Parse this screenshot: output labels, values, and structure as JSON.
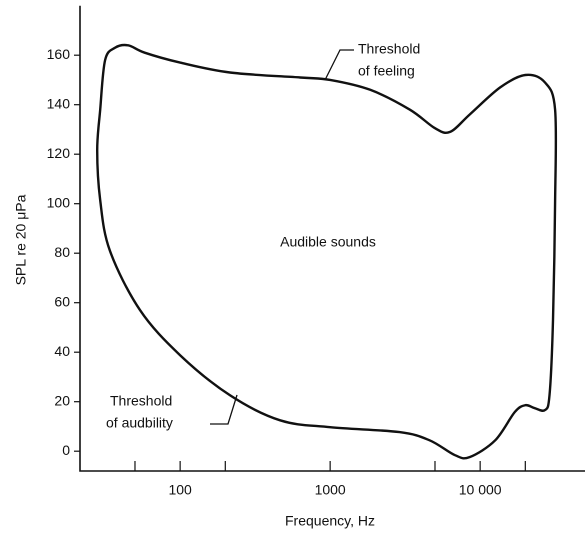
{
  "chart_data": {
    "type": "line",
    "xlabel": "Frequency, Hz",
    "ylabel": "SPL re 20 μPa",
    "xscale": "log",
    "xlim": [
      21.5,
      50000
    ],
    "ylim": [
      -8,
      180
    ],
    "xticks": [
      100,
      1000,
      {
        "value": 10000,
        "label": "10 000"
      }
    ],
    "minor_xticks": [
      50,
      200,
      5000,
      20000
    ],
    "yticks": [
      0,
      20,
      40,
      60,
      80,
      100,
      120,
      140,
      160
    ],
    "annotations": [
      {
        "text": [
          "Threshold",
          "of feeling"
        ]
      },
      {
        "text": [
          "Threshold",
          "of audbility"
        ]
      },
      {
        "text": [
          "Audible sounds"
        ]
      }
    ],
    "series": [
      {
        "color": "#111111",
        "closed": true,
        "x": [
          29.3,
          31.6,
          36.8,
          45,
          58,
          100,
          215,
          631,
          1000,
          1850,
          3400,
          5000,
          6300,
          8500,
          13600,
          20000,
          27000,
          31600,
          31600,
          30600,
          29000,
          27000,
          23000,
          20000,
          17000,
          12600,
          8500,
          6800,
          4600,
          2900,
          1000,
          464,
          215,
          100,
          54,
          34,
          29.3,
          28
        ],
        "values": [
          138,
          158,
          163,
          164,
          161,
          157,
          153,
          151,
          150,
          146,
          138,
          130.5,
          129,
          136,
          147,
          152,
          149,
          138,
          101,
          53,
          22.6,
          16.6,
          17.4,
          18.6,
          15.8,
          4.4,
          -2.4,
          -1.6,
          4.4,
          7.7,
          9.7,
          12.5,
          22.6,
          38.8,
          57,
          81,
          101.4,
          121.6
        ]
      }
    ]
  }
}
